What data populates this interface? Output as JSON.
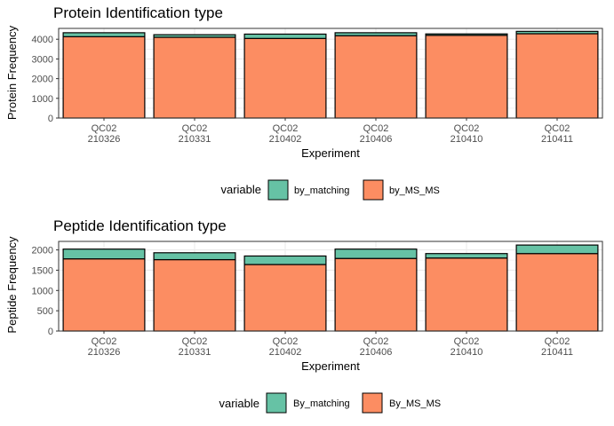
{
  "colors": {
    "matching": "#66c2a5",
    "ms_ms": "#fc8d62",
    "grid": "#ebebeb",
    "panel_border": "#333333",
    "bar_outline": "#000000",
    "tick_text": "#4d4d4d"
  },
  "chart_data": [
    {
      "type": "bar",
      "stacked": true,
      "title": "Protein Identification type",
      "xlabel": "Experiment",
      "ylabel": "Protein Frequency",
      "ylim": [
        0,
        4550
      ],
      "yticks": [
        0,
        1000,
        2000,
        3000,
        4000
      ],
      "grid": true,
      "categories": [
        [
          "QC02",
          "210326"
        ],
        [
          "QC02",
          "210331"
        ],
        [
          "QC02",
          "210402"
        ],
        [
          "QC02",
          "210406"
        ],
        [
          "QC02",
          "210410"
        ],
        [
          "QC02",
          "210411"
        ]
      ],
      "series": [
        {
          "name": "by_MS_MS",
          "color_key": "ms_ms",
          "values": [
            4130,
            4100,
            4040,
            4180,
            4200,
            4280
          ]
        },
        {
          "name": "by_matching",
          "color_key": "matching",
          "values": [
            200,
            130,
            220,
            150,
            70,
            120
          ]
        }
      ],
      "legend": {
        "position": "bottom",
        "title": "variable",
        "entries": [
          "by_matching",
          "by_MS_MS"
        ]
      }
    },
    {
      "type": "bar",
      "stacked": true,
      "title": "Peptide Identification type",
      "xlabel": "Experiment",
      "ylabel": "Peptide Frequency",
      "ylim": [
        0,
        2210
      ],
      "yticks": [
        0,
        500,
        1000,
        1500,
        2000
      ],
      "grid": true,
      "categories": [
        [
          "QC02",
          "210326"
        ],
        [
          "QC02",
          "210331"
        ],
        [
          "QC02",
          "210402"
        ],
        [
          "QC02",
          "210406"
        ],
        [
          "QC02",
          "210410"
        ],
        [
          "QC02",
          "210411"
        ]
      ],
      "series": [
        {
          "name": "By_MS_MS",
          "color_key": "ms_ms",
          "values": [
            1780,
            1760,
            1640,
            1790,
            1800,
            1910
          ]
        },
        {
          "name": "By_matching",
          "color_key": "matching",
          "values": [
            240,
            170,
            210,
            230,
            110,
            210
          ]
        }
      ],
      "legend": {
        "position": "bottom",
        "title": "variable",
        "entries": [
          "By_matching",
          "By_MS_MS"
        ]
      }
    }
  ]
}
